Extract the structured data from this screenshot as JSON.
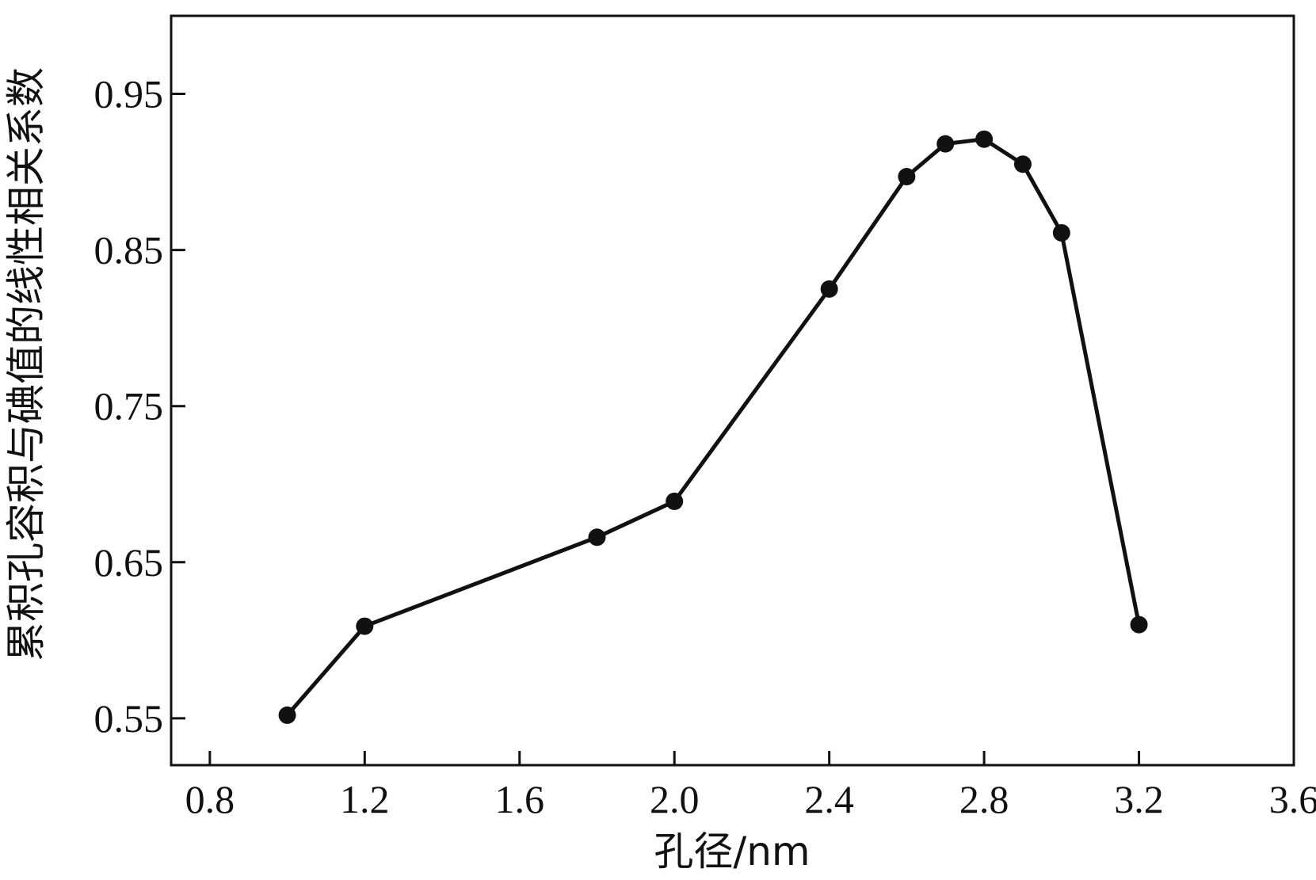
{
  "chart_data": {
    "type": "line",
    "xlabel": "孔径/nm",
    "ylabel": "累积孔容积与碘值的线性相关系数",
    "xlim": [
      0.7,
      3.6
    ],
    "ylim": [
      0.52,
      1.0
    ],
    "xticks": [
      0.8,
      1.2,
      1.6,
      2.0,
      2.4,
      2.8,
      3.2,
      3.6
    ],
    "xtick_labels": [
      "0.8",
      "1.2",
      "1.6",
      "2.0",
      "2.4",
      "2.8",
      "3.2",
      "3.6"
    ],
    "yticks": [
      0.55,
      0.65,
      0.75,
      0.85,
      0.95
    ],
    "ytick_labels": [
      "0.55",
      "0.65",
      "0.75",
      "0.85",
      "0.95"
    ],
    "grid": false,
    "series": [
      {
        "x": [
          1.0,
          1.2,
          1.8,
          2.0,
          2.4,
          2.6,
          2.7,
          2.8,
          2.9,
          3.0,
          3.2
        ],
        "y": [
          0.552,
          0.609,
          0.666,
          0.689,
          0.825,
          0.897,
          0.918,
          0.921,
          0.905,
          0.861,
          0.61
        ],
        "color": "#111111",
        "marker": "circle"
      }
    ]
  }
}
